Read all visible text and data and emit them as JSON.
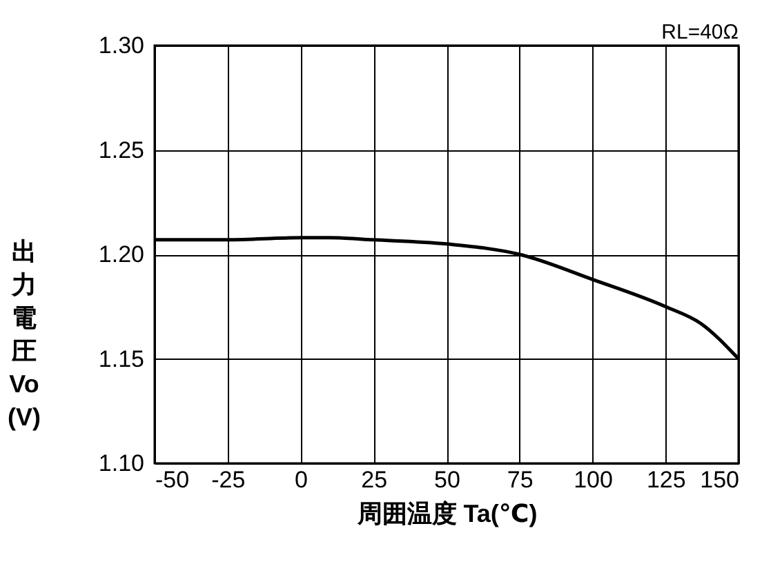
{
  "chart_data": {
    "type": "line",
    "xlabel": "周囲温度 Ta(℃)",
    "ylabel": "出力電圧 Vo (V)",
    "annotations": [
      "RL=40Ω"
    ],
    "x": [
      -50,
      -25,
      0,
      10,
      25,
      50,
      75,
      100,
      125,
      137,
      150
    ],
    "series": [
      {
        "color": "#000000",
        "values": [
          1.207,
          1.207,
          1.208,
          1.208,
          1.207,
          1.205,
          1.2,
          1.188,
          1.175,
          1.167,
          1.15
        ]
      }
    ],
    "xlim": [
      -50,
      150
    ],
    "xticks": [
      -50,
      -25,
      0,
      25,
      50,
      75,
      100,
      125,
      150
    ],
    "ylim": [
      1.1,
      1.3
    ],
    "yticks": [
      {
        "value": 1.1,
        "label": "1.10"
      },
      {
        "value": 1.15,
        "label": "1.15"
      },
      {
        "value": 1.2,
        "label": "1.20"
      },
      {
        "value": 1.25,
        "label": "1.25"
      },
      {
        "value": 1.3,
        "label": "1.30"
      }
    ],
    "grid": true,
    "marker": "none",
    "line_style": "solid"
  }
}
